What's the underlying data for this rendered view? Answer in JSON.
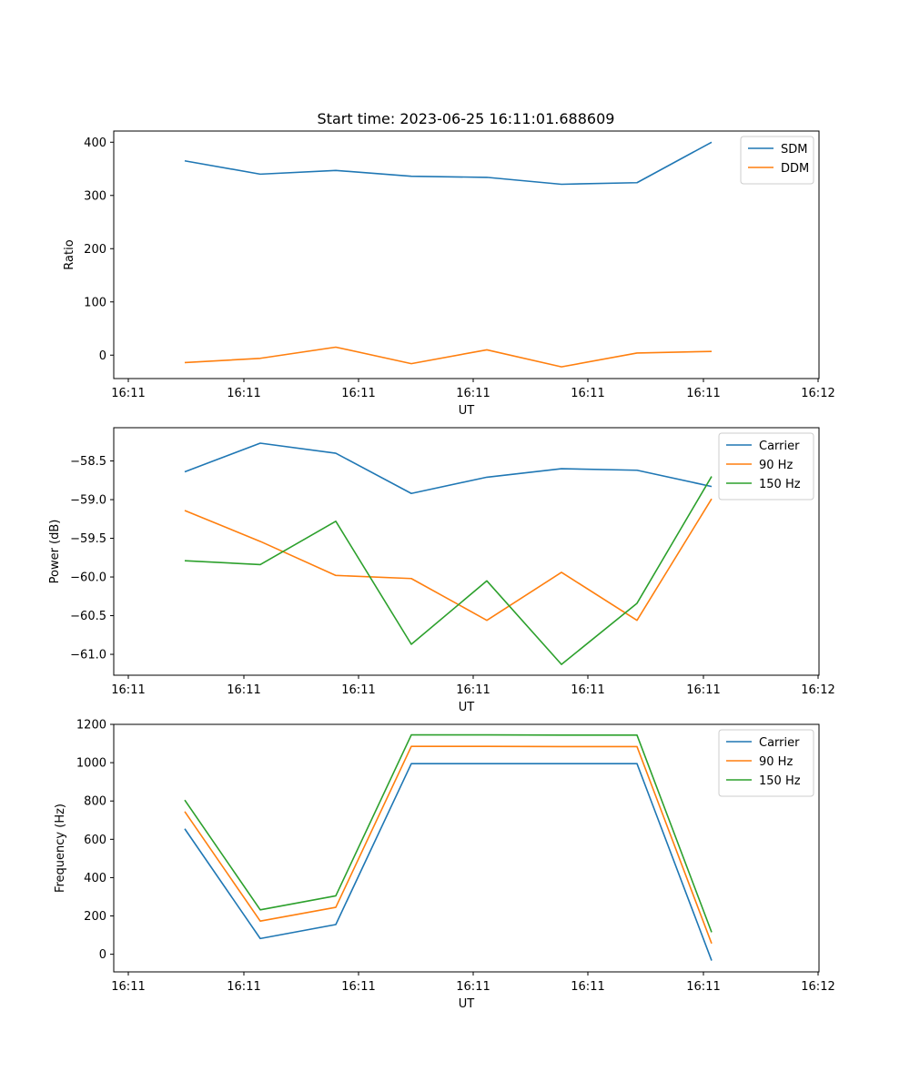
{
  "figure": {
    "title": "Start time: 2023-06-25 16:11:01.688609"
  },
  "chart_data": [
    {
      "type": "line",
      "xlabel": "UT",
      "ylabel": "Ratio",
      "x_tick_labels": [
        "16:11",
        "16:11",
        "16:11",
        "16:11",
        "16:11",
        "16:11",
        "16:12"
      ],
      "y_tick_labels": [
        "0",
        "100",
        "200",
        "300",
        "400"
      ],
      "y_ticks": [
        0,
        100,
        200,
        300,
        400
      ],
      "ylim": [
        -44,
        421
      ],
      "grid": false,
      "legend_position": "top-right",
      "series": [
        {
          "name": "SDM",
          "color": "#1f77b4",
          "values": [
            365,
            340,
            347,
            336,
            334,
            321,
            324,
            400
          ]
        },
        {
          "name": "DDM",
          "color": "#ff7f0e",
          "values": [
            -14,
            -6,
            15,
            -16,
            10,
            -22,
            4,
            7
          ]
        }
      ]
    },
    {
      "type": "line",
      "xlabel": "UT",
      "ylabel": "Power (dB)",
      "x_tick_labels": [
        "16:11",
        "16:11",
        "16:11",
        "16:11",
        "16:11",
        "16:11",
        "16:12"
      ],
      "y_tick_labels": [
        "−58.5",
        "−59.0",
        "−59.5",
        "−60.0",
        "−60.5",
        "−61.0"
      ],
      "y_ticks": [
        -58.5,
        -59.0,
        -59.5,
        -60.0,
        -60.5,
        -61.0
      ],
      "ylim": [
        -61.27,
        -58.07
      ],
      "grid": false,
      "legend_position": "top-right",
      "series": [
        {
          "name": "Carrier",
          "color": "#1f77b4",
          "values": [
            -58.64,
            -58.27,
            -58.4,
            -58.92,
            -58.71,
            -58.6,
            -58.62,
            -58.83
          ]
        },
        {
          "name": "90 Hz",
          "color": "#ff7f0e",
          "values": [
            -59.14,
            -59.54,
            -59.98,
            -60.02,
            -60.56,
            -59.94,
            -60.56,
            -58.99
          ]
        },
        {
          "name": "150 Hz",
          "color": "#2ca02c",
          "values": [
            -59.79,
            -59.84,
            -59.28,
            -60.87,
            -60.05,
            -61.13,
            -60.34,
            -58.7
          ]
        }
      ]
    },
    {
      "type": "line",
      "xlabel": "UT",
      "ylabel": "Frequency (Hz)",
      "x_tick_labels": [
        "16:11",
        "16:11",
        "16:11",
        "16:11",
        "16:11",
        "16:11",
        "16:12"
      ],
      "y_tick_labels": [
        "0",
        "200",
        "400",
        "600",
        "800",
        "1000",
        "1200"
      ],
      "y_ticks": [
        0,
        200,
        400,
        600,
        800,
        1000,
        1200
      ],
      "ylim": [
        -92,
        1200
      ],
      "grid": false,
      "legend_position": "top-right",
      "series": [
        {
          "name": "Carrier",
          "color": "#1f77b4",
          "values": [
            655,
            82,
            155,
            995,
            995,
            995,
            995,
            -33
          ]
        },
        {
          "name": "90 Hz",
          "color": "#ff7f0e",
          "values": [
            745,
            173,
            245,
            1085,
            1085,
            1084,
            1084,
            56
          ]
        },
        {
          "name": "150 Hz",
          "color": "#2ca02c",
          "values": [
            805,
            232,
            305,
            1145,
            1145,
            1144,
            1144,
            115
          ]
        }
      ]
    }
  ]
}
